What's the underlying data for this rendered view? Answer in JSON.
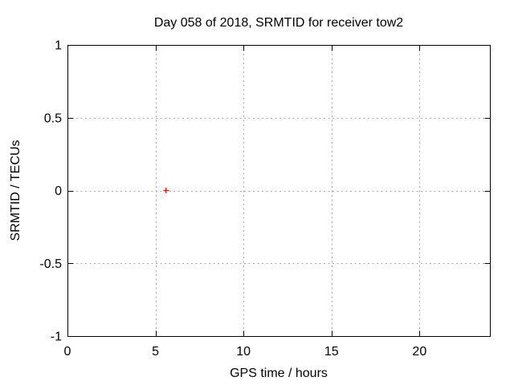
{
  "chart_data": {
    "type": "scatter",
    "title": "Day 058 of 2018, SRMTID for receiver tow2",
    "xlabel": "GPS time / hours",
    "ylabel": "SRMTID / TECUs",
    "xlim": [
      0,
      24
    ],
    "ylim": [
      -1,
      1
    ],
    "xticks": {
      "values": [
        0,
        5,
        10,
        15,
        20
      ],
      "labels": [
        "0",
        "5",
        "10",
        "15",
        "20"
      ]
    },
    "yticks": {
      "values": [
        -1,
        -0.5,
        0,
        0.5,
        1
      ],
      "labels": [
        "-1",
        "-0.5",
        "0",
        "0.5",
        "1"
      ]
    },
    "grid": "dashed",
    "grid_at": "major-ticks",
    "legend": "none",
    "tick_style": "inward-mirrored",
    "series": [
      {
        "name": "SRMTID",
        "marker": "plus",
        "color": "#ff0000",
        "points": [
          {
            "x": 5.6,
            "y": 0.0
          }
        ]
      }
    ],
    "colors": {
      "background": "#ffffff",
      "border": "#000000",
      "grid": "#a8a8a8",
      "text": "#000000",
      "marker": "#ff0000"
    }
  }
}
